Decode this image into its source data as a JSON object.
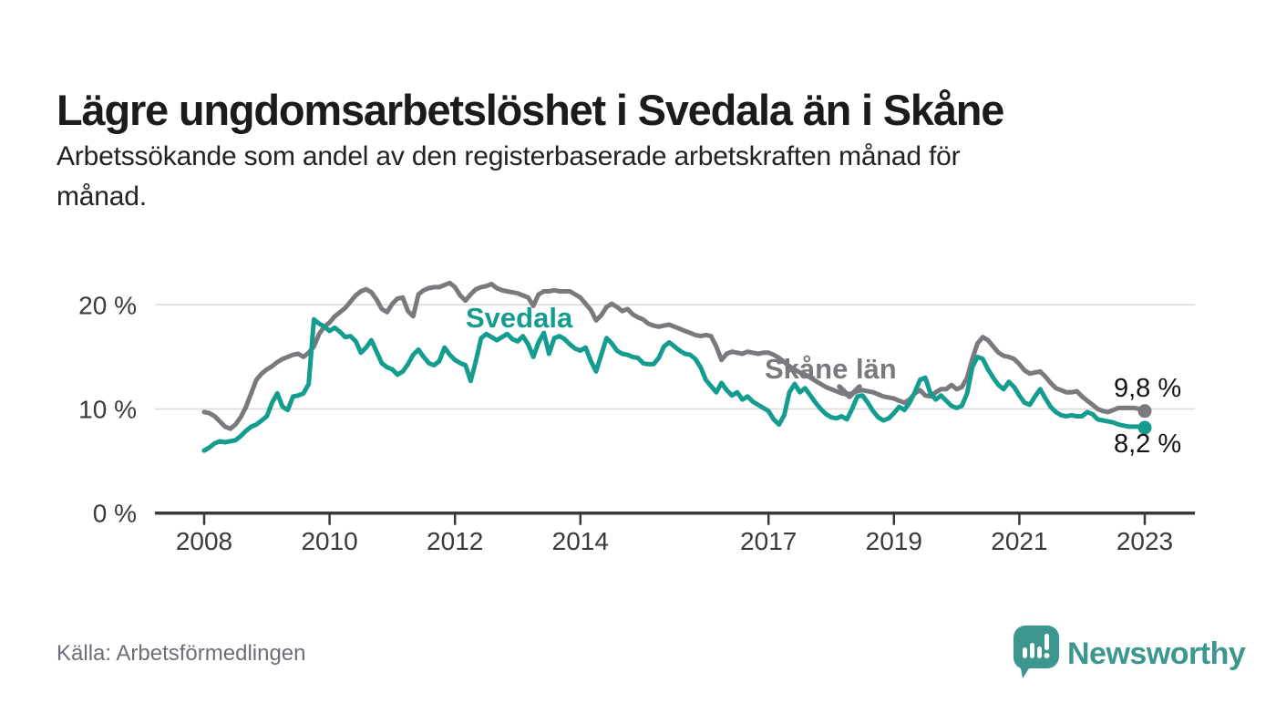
{
  "header": {
    "title": "Lägre ungdomsarbetslöshet i Svedala än i Skåne",
    "subtitle_lines": [
      "Arbetssökande som andel av den registerbaserade arbetskraften månad för",
      "månad."
    ]
  },
  "footer": {
    "source": "Källa: Arbetsförmedlingen",
    "logo_text": "Newsworthy"
  },
  "colors": {
    "svedala": "#149c8e",
    "skane": "#7a797e",
    "grid": "#d9d9d9",
    "axis": "#3a3a3a",
    "value_text": "#141414",
    "muted_text": "#6e6e79",
    "brand": "#3d978e"
  },
  "chart_data": {
    "type": "line",
    "x_start": "2008-01",
    "x_interval": "monthly",
    "x_ticks": [
      2008,
      2010,
      2012,
      2014,
      2017,
      2019,
      2021,
      2023
    ],
    "y_ticks": [
      {
        "value": 0,
        "label": "0 %"
      },
      {
        "value": 10,
        "label": "10 %"
      },
      {
        "value": 20,
        "label": "20 %"
      }
    ],
    "ylim": [
      0,
      23
    ],
    "grid": "horizontal-only",
    "legend_position": "inline-labels",
    "series": [
      {
        "name": "Skåne län",
        "color": "#7a797e",
        "end_label": "9,8 %",
        "end_value": 9.8,
        "values": [
          9.7,
          9.6,
          9.3,
          8.8,
          8.3,
          8.1,
          8.5,
          9.2,
          10.2,
          11.5,
          12.8,
          13.4,
          13.8,
          14.1,
          14.5,
          14.8,
          15.0,
          15.2,
          15.3,
          15.0,
          15.4,
          16.0,
          17.2,
          17.9,
          18.3,
          18.9,
          19.3,
          19.7,
          20.3,
          20.9,
          21.3,
          21.5,
          21.2,
          20.5,
          19.6,
          19.3,
          20.1,
          20.6,
          20.7,
          19.4,
          18.9,
          21.0,
          21.4,
          21.6,
          21.7,
          21.7,
          21.9,
          22.1,
          21.7,
          20.9,
          20.4,
          21.0,
          21.5,
          21.7,
          21.8,
          22.0,
          21.6,
          21.4,
          21.3,
          21.2,
          21.1,
          20.9,
          20.7,
          19.9,
          21.0,
          21.3,
          21.3,
          21.4,
          21.3,
          21.3,
          21.3,
          21.0,
          20.7,
          20.1,
          19.5,
          18.5,
          19.0,
          19.8,
          20.1,
          19.8,
          19.4,
          19.6,
          19.1,
          18.8,
          18.6,
          18.2,
          18.0,
          17.9,
          18.0,
          18.1,
          17.9,
          17.7,
          17.5,
          17.3,
          17.1,
          17.0,
          17.1,
          17.0,
          16.0,
          14.7,
          15.3,
          15.5,
          15.4,
          15.3,
          15.5,
          15.4,
          15.3,
          15.4,
          15.4,
          15.2,
          14.9,
          14.5,
          14.1,
          13.8,
          13.5,
          13.3,
          13.0,
          12.7,
          12.4,
          12.1,
          11.9,
          11.7,
          11.5,
          11.4,
          11.5,
          11.7,
          11.8,
          11.7,
          11.6,
          11.4,
          11.2,
          11.1,
          11.0,
          10.8,
          10.6,
          10.9,
          11.5,
          11.8,
          11.3,
          11.2,
          11.6,
          11.9,
          11.9,
          12.3,
          11.9,
          12.1,
          13.0,
          14.8,
          16.3,
          16.9,
          16.6,
          16.0,
          15.4,
          15.1,
          15.0,
          14.8,
          14.3,
          13.7,
          13.4,
          13.5,
          13.6,
          13.1,
          12.5,
          12.0,
          11.8,
          11.6,
          11.6,
          11.7,
          11.2,
          10.8,
          10.4,
          10.0,
          9.8,
          9.7,
          9.9,
          10.1,
          10.1,
          10.1,
          10.1,
          10.0,
          9.8
        ]
      },
      {
        "name": "Svedala",
        "color": "#149c8e",
        "end_label": "8,2 %",
        "end_value": 8.2,
        "values": [
          6.0,
          6.3,
          6.7,
          6.9,
          6.8,
          6.9,
          7.0,
          7.4,
          7.9,
          8.3,
          8.5,
          8.9,
          9.3,
          10.6,
          11.5,
          10.2,
          9.9,
          11.2,
          11.3,
          11.5,
          12.4,
          18.6,
          18.2,
          17.9,
          17.5,
          17.8,
          17.4,
          16.9,
          17.0,
          16.5,
          15.4,
          15.9,
          16.6,
          15.5,
          14.4,
          14.0,
          13.8,
          13.3,
          13.6,
          14.3,
          15.2,
          15.7,
          15.0,
          14.4,
          14.2,
          14.6,
          15.9,
          15.2,
          14.7,
          14.4,
          14.2,
          12.7,
          14.6,
          16.8,
          17.2,
          16.9,
          16.6,
          16.9,
          17.2,
          16.7,
          16.5,
          17.0,
          16.2,
          15.0,
          16.4,
          17.3,
          15.3,
          16.8,
          17.0,
          16.7,
          16.2,
          15.8,
          15.6,
          15.9,
          14.6,
          13.6,
          15.2,
          16.8,
          16.3,
          15.6,
          15.3,
          15.2,
          15.0,
          14.9,
          14.4,
          14.3,
          14.3,
          14.9,
          16.0,
          16.4,
          16.0,
          15.6,
          15.3,
          15.2,
          14.8,
          14.0,
          12.8,
          12.2,
          11.6,
          12.5,
          11.8,
          11.3,
          11.6,
          10.9,
          11.2,
          10.7,
          10.4,
          10.1,
          9.8,
          9.0,
          8.5,
          9.4,
          11.6,
          12.4,
          11.6,
          12.0,
          11.3,
          10.6,
          10.0,
          9.5,
          9.2,
          9.1,
          9.3,
          9.0,
          10.0,
          11.2,
          11.3,
          10.6,
          9.8,
          9.2,
          8.9,
          9.1,
          9.6,
          10.2,
          9.9,
          10.6,
          11.6,
          12.8,
          13.0,
          11.5,
          10.9,
          11.3,
          10.8,
          10.3,
          10.1,
          10.3,
          11.5,
          14.0,
          15.0,
          14.8,
          13.8,
          13.0,
          12.3,
          11.9,
          12.6,
          12.1,
          11.3,
          10.6,
          10.4,
          11.2,
          11.9,
          11.0,
          10.2,
          9.7,
          9.4,
          9.3,
          9.4,
          9.3,
          9.3,
          9.7,
          9.5,
          9.0,
          8.9,
          8.8,
          8.7,
          8.5,
          8.4,
          8.3,
          8.3,
          8.3,
          8.2
        ]
      }
    ]
  }
}
